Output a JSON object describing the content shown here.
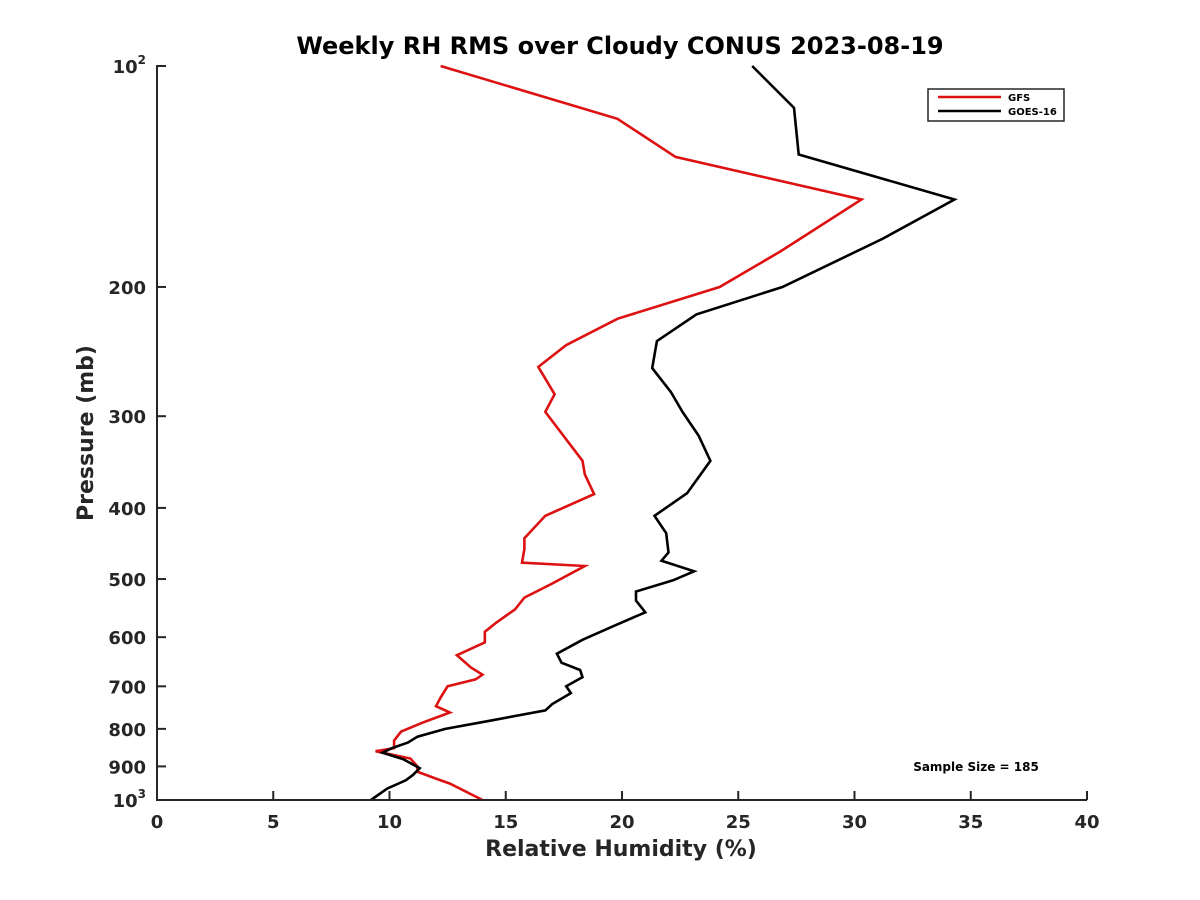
{
  "chart_data": {
    "type": "line",
    "title": "Weekly RH RMS over Cloudy CONUS 2023-08-19",
    "xlabel": "Relative Humidity (%)",
    "ylabel": "Pressure (mb)",
    "xlim": [
      0,
      40
    ],
    "ylim": [
      100,
      1000
    ],
    "y_scale": "log",
    "y_reversed": true,
    "x_ticks": [
      0,
      5,
      10,
      15,
      20,
      25,
      30,
      35,
      40
    ],
    "x_tick_labels": [
      "0",
      "5",
      "10",
      "15",
      "20",
      "25",
      "30",
      "35",
      "40"
    ],
    "y_ticks": [
      100,
      200,
      300,
      400,
      500,
      600,
      700,
      800,
      900,
      1000
    ],
    "y_tick_labels": [
      {
        "base": "10",
        "exp": "2"
      },
      {
        "base": "200"
      },
      {
        "base": "300"
      },
      {
        "base": "400"
      },
      {
        "base": "500"
      },
      {
        "base": "600"
      },
      {
        "base": "700"
      },
      {
        "base": "800"
      },
      {
        "base": "900"
      },
      {
        "base": "10",
        "exp": "3"
      }
    ],
    "grid": false,
    "legend_position": "top-right",
    "annotation": "Sample Size = 185",
    "series": [
      {
        "name": "GFS",
        "color": "#dd1111",
        "points": [
          [
            12.2,
            100
          ],
          [
            19.8,
            118
          ],
          [
            21.5,
            128
          ],
          [
            22.3,
            133
          ],
          [
            30.3,
            152
          ],
          [
            26.8,
            179
          ],
          [
            24.2,
            200
          ],
          [
            19.8,
            221
          ],
          [
            17.6,
            240
          ],
          [
            16.4,
            257
          ],
          [
            17.1,
            280
          ],
          [
            16.7,
            296
          ],
          [
            18.3,
            345
          ],
          [
            18.4,
            360
          ],
          [
            18.8,
            383
          ],
          [
            16.7,
            410
          ],
          [
            15.8,
            440
          ],
          [
            15.8,
            455
          ],
          [
            15.7,
            475
          ],
          [
            18.4,
            480
          ],
          [
            17.0,
            507
          ],
          [
            15.8,
            530
          ],
          [
            15.4,
            550
          ],
          [
            14.6,
            573
          ],
          [
            14.1,
            590
          ],
          [
            14.1,
            610
          ],
          [
            12.9,
            635
          ],
          [
            13.5,
            660
          ],
          [
            14.0,
            675
          ],
          [
            13.7,
            685
          ],
          [
            12.5,
            700
          ],
          [
            12.2,
            725
          ],
          [
            12.0,
            745
          ],
          [
            12.6,
            760
          ],
          [
            11.4,
            785
          ],
          [
            10.5,
            807
          ],
          [
            10.2,
            830
          ],
          [
            10.2,
            850
          ],
          [
            9.4,
            858
          ],
          [
            10.9,
            878
          ],
          [
            11.2,
            900
          ],
          [
            11.2,
            915
          ],
          [
            12.0,
            935
          ],
          [
            12.6,
            950
          ],
          [
            14.0,
            1000
          ]
        ]
      },
      {
        "name": "GOES-16",
        "color": "#000000",
        "points": [
          [
            25.6,
            100
          ],
          [
            27.4,
            114
          ],
          [
            27.6,
            132
          ],
          [
            34.3,
            152
          ],
          [
            31.2,
            172
          ],
          [
            26.9,
            200
          ],
          [
            23.2,
            218
          ],
          [
            21.5,
            237
          ],
          [
            21.3,
            258
          ],
          [
            22.1,
            278
          ],
          [
            22.6,
            296
          ],
          [
            23.3,
            319
          ],
          [
            23.8,
            345
          ],
          [
            22.8,
            382
          ],
          [
            21.4,
            410
          ],
          [
            21.9,
            433
          ],
          [
            22.0,
            460
          ],
          [
            21.7,
            472
          ],
          [
            23.1,
            488
          ],
          [
            22.2,
            502
          ],
          [
            20.6,
            520
          ],
          [
            20.6,
            535
          ],
          [
            21.0,
            555
          ],
          [
            19.6,
            580
          ],
          [
            18.3,
            605
          ],
          [
            17.2,
            632
          ],
          [
            17.4,
            650
          ],
          [
            18.2,
            665
          ],
          [
            18.3,
            680
          ],
          [
            17.6,
            700
          ],
          [
            17.8,
            715
          ],
          [
            17.0,
            740
          ],
          [
            16.7,
            755
          ],
          [
            14.3,
            780
          ],
          [
            12.4,
            800
          ],
          [
            11.2,
            820
          ],
          [
            10.8,
            835
          ],
          [
            10.1,
            850
          ],
          [
            9.7,
            862
          ],
          [
            10.6,
            880
          ],
          [
            11.3,
            905
          ],
          [
            11.0,
            925
          ],
          [
            10.7,
            940
          ],
          [
            9.9,
            965
          ],
          [
            9.2,
            1000
          ]
        ]
      }
    ]
  }
}
